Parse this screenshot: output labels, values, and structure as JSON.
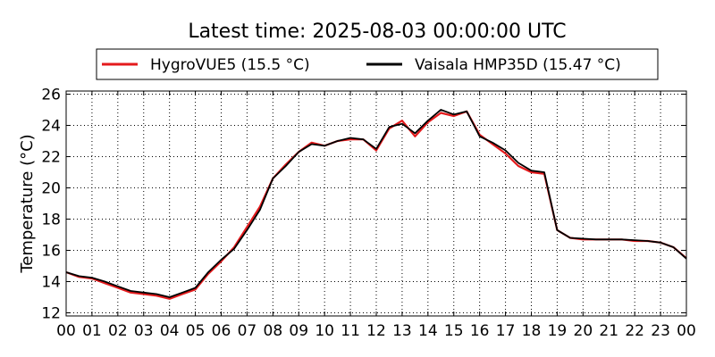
{
  "chart_data": {
    "type": "line",
    "title": "Latest time: 2025-08-03 00:00:00 UTC",
    "ylabel": "Temperature (°C)",
    "xlabel": "",
    "xlim": [
      0,
      24
    ],
    "ylim": [
      11.8,
      26.2
    ],
    "x_ticks": [
      0,
      1,
      2,
      3,
      4,
      5,
      6,
      7,
      8,
      9,
      10,
      11,
      12,
      13,
      14,
      15,
      16,
      17,
      18,
      19,
      20,
      21,
      22,
      23,
      24
    ],
    "x_tick_labels": [
      "00",
      "01",
      "02",
      "03",
      "04",
      "05",
      "06",
      "07",
      "08",
      "09",
      "10",
      "11",
      "12",
      "13",
      "14",
      "15",
      "16",
      "17",
      "18",
      "19",
      "20",
      "21",
      "22",
      "23",
      "00"
    ],
    "y_ticks": [
      12,
      14,
      16,
      18,
      20,
      22,
      24,
      26
    ],
    "y_tick_labels": [
      "12",
      "14",
      "16",
      "18",
      "20",
      "22",
      "24",
      "26"
    ],
    "grid": true,
    "legend_position": "top-center",
    "series": [
      {
        "name": "HygroVUE5 (15.5 °C)",
        "color": "#e41a1c",
        "x": [
          0,
          0.5,
          1,
          1.5,
          2,
          2.5,
          3,
          3.5,
          4,
          4.5,
          5,
          5.5,
          6,
          6.5,
          7,
          7.5,
          8,
          8.5,
          9,
          9.5,
          10,
          10.5,
          11,
          11.5,
          12,
          12.5,
          13,
          13.5,
          14,
          14.5,
          15,
          15.5,
          16,
          16.5,
          17,
          17.5,
          18,
          18.5,
          19,
          19.5,
          20,
          20.5,
          21,
          21.5,
          22,
          22.5,
          23,
          23.5,
          24
        ],
        "values": [
          14.6,
          14.3,
          14.2,
          13.9,
          13.6,
          13.3,
          13.2,
          13.1,
          12.9,
          13.2,
          13.5,
          14.5,
          15.3,
          16.2,
          17.5,
          18.8,
          20.6,
          21.5,
          22.3,
          22.9,
          22.7,
          23.0,
          23.1,
          23.1,
          22.4,
          23.8,
          24.3,
          23.3,
          24.2,
          24.8,
          24.6,
          24.9,
          23.4,
          22.8,
          22.2,
          21.4,
          21.0,
          20.9,
          17.3,
          16.8,
          16.7,
          16.7,
          16.7,
          16.7,
          16.6,
          16.6,
          16.5,
          16.2,
          15.5
        ]
      },
      {
        "name": "Vaisala HMP35D (15.47 °C)",
        "color": "#000000",
        "x": [
          0,
          0.5,
          1,
          1.5,
          2,
          2.5,
          3,
          3.5,
          4,
          4.5,
          5,
          5.5,
          6,
          6.5,
          7,
          7.5,
          8,
          8.5,
          9,
          9.5,
          10,
          10.5,
          11,
          11.5,
          12,
          12.5,
          13,
          13.5,
          14,
          14.5,
          15,
          15.5,
          16,
          16.5,
          17,
          17.5,
          18,
          18.5,
          19,
          19.5,
          20,
          20.5,
          21,
          21.5,
          22,
          22.5,
          23,
          23.5,
          24
        ],
        "values": [
          14.6,
          14.35,
          14.25,
          14.0,
          13.7,
          13.4,
          13.3,
          13.2,
          13.0,
          13.3,
          13.6,
          14.6,
          15.4,
          16.1,
          17.3,
          18.6,
          20.6,
          21.4,
          22.3,
          22.8,
          22.7,
          23.0,
          23.2,
          23.1,
          22.5,
          23.9,
          24.1,
          23.5,
          24.3,
          25.0,
          24.7,
          24.9,
          23.3,
          22.9,
          22.4,
          21.6,
          21.1,
          21.0,
          17.3,
          16.8,
          16.75,
          16.7,
          16.7,
          16.7,
          16.65,
          16.6,
          16.5,
          16.2,
          15.47
        ]
      }
    ]
  }
}
